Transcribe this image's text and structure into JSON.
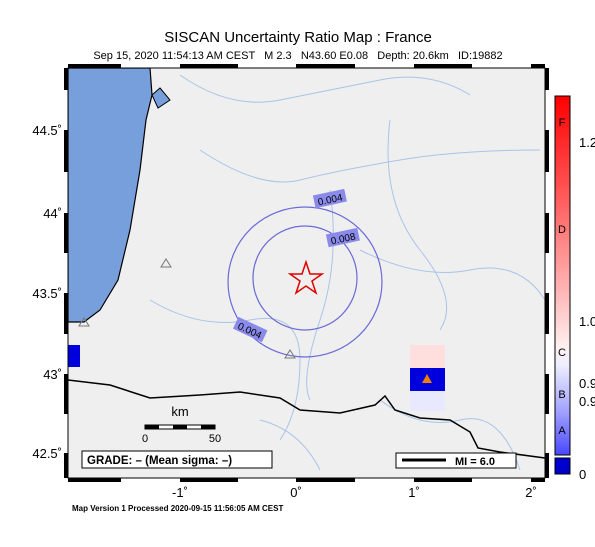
{
  "header": {
    "title": "SISCAN Uncertainty Ratio Map : France",
    "subtitle": "Sep 15, 2020 11:54:13 AM CEST   M 2.3   N43.60 E0.08   Depth: 20.6km   ID:19882"
  },
  "lat_labels": [
    "44.5˚",
    "44˚",
    "43.5˚",
    "43˚",
    "42.5˚"
  ],
  "lon_labels": [
    "-1˚",
    "0˚",
    "1˚",
    "2˚"
  ],
  "contour_labels": [
    "0.004",
    "0.008",
    "0.004"
  ],
  "scale": {
    "unit": "km",
    "start": "0",
    "end": "50"
  },
  "grade": "GRADE: – (Mean sigma: –)",
  "mi": "MI = 6.0",
  "colorbar": {
    "grades": [
      "F",
      "D",
      "C",
      "B",
      "A"
    ],
    "values": [
      "1.2",
      "1.0",
      "0.9",
      "0.9",
      "0"
    ]
  },
  "footer": "Map Version 1 Processed 2020-09-15 11:56:05 AM CEST"
}
